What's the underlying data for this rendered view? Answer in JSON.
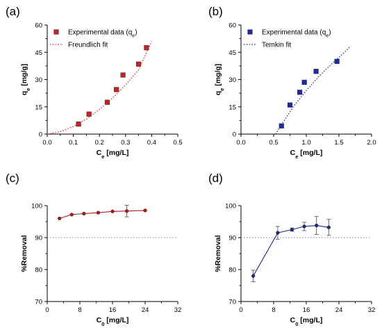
{
  "chart_data": [
    {
      "panel": "(a)",
      "type": "scatter",
      "xlabel": "C",
      "xlabel_sub": "e",
      "xlabel_unit": " [mg/L]",
      "ylabel": "q",
      "ylabel_sub": "e",
      "ylabel_unit": " [mg/g]",
      "xlim": [
        0,
        0.5
      ],
      "ylim": [
        0,
        60
      ],
      "xticks": [
        "0.0",
        "0.1",
        "0.2",
        "0.3",
        "0.4",
        "0.5"
      ],
      "yticks": [
        "0",
        "15",
        "30",
        "45",
        "60"
      ],
      "grid": false,
      "legend_placement": "top-left",
      "series": [
        {
          "name": "Experimental data (q",
          "name_sub": "e",
          "name_tail": ")",
          "kind": "points",
          "marker": "square",
          "color": "#cc1f1f",
          "x": [
            0.12,
            0.16,
            0.23,
            0.265,
            0.29,
            0.35,
            0.38
          ],
          "y": [
            5.5,
            11,
            17.5,
            24.5,
            32.5,
            38.5,
            47.5
          ]
        },
        {
          "name": "Freundlich fit",
          "kind": "dotted-line",
          "color": "#e0201f",
          "x": [
            0,
            0.05,
            0.1,
            0.15,
            0.2,
            0.25,
            0.3,
            0.35,
            0.4
          ],
          "y": [
            0,
            1.3,
            4.2,
            8.3,
            13.5,
            19.8,
            27.1,
            35.3,
            51
          ]
        }
      ]
    },
    {
      "panel": "(b)",
      "type": "scatter",
      "xlabel": "C",
      "xlabel_sub": "e",
      "xlabel_unit": " [mg/L]",
      "ylabel": "q",
      "ylabel_sub": "e",
      "ylabel_unit": " [mg/g]",
      "xlim": [
        0,
        2.0
      ],
      "ylim": [
        0,
        60
      ],
      "xticks": [
        "0.0",
        "0.5",
        "1.0",
        "1.5",
        "2.0"
      ],
      "yticks": [
        "0",
        "15",
        "30",
        "45",
        "60"
      ],
      "grid": false,
      "legend_placement": "top-left",
      "series": [
        {
          "name": "Experimental data (q",
          "name_sub": "e",
          "name_tail": ")",
          "kind": "points",
          "marker": "square",
          "color": "#1a2aa8",
          "x": [
            0.62,
            0.75,
            0.9,
            0.97,
            1.15,
            1.47
          ],
          "y": [
            4.5,
            16,
            23,
            28.5,
            34.5,
            40
          ]
        },
        {
          "name": "Temkin fit",
          "kind": "dotted-line",
          "color": "#1a2aa8",
          "x": [
            0.53,
            0.6,
            0.8,
            1.0,
            1.2,
            1.4,
            1.6,
            1.68
          ],
          "y": [
            0,
            4,
            15,
            24,
            32,
            39,
            45.5,
            48.5
          ]
        }
      ]
    },
    {
      "panel": "(c)",
      "type": "line",
      "xlabel": "C",
      "xlabel_sub": "0",
      "xlabel_unit": " [mg/L]",
      "ylabel": "%Removal",
      "xlim": [
        0,
        32
      ],
      "ylim": [
        70,
        100
      ],
      "xticks": [
        "0",
        "8",
        "16",
        "24",
        "32"
      ],
      "yticks": [
        "70",
        "80",
        "90",
        "100"
      ],
      "grid": false,
      "reference_line_y": 90,
      "series": [
        {
          "kind": "line-markers",
          "marker": "circle",
          "color": "#b3161b",
          "x": [
            3,
            6,
            9,
            12.5,
            16,
            19.5,
            24
          ],
          "y": [
            96,
            97.2,
            97.5,
            97.8,
            98.2,
            98.3,
            98.5
          ],
          "err": [
            0,
            0,
            0,
            0,
            0,
            1.8,
            0
          ]
        }
      ]
    },
    {
      "panel": "(d)",
      "type": "line",
      "xlabel": "C",
      "xlabel_sub": "0",
      "xlabel_unit": " [mg/L]",
      "ylabel": "%Removal",
      "xlim": [
        0,
        32
      ],
      "ylim": [
        70,
        100
      ],
      "xticks": [
        "0",
        "8",
        "16",
        "24",
        "32"
      ],
      "yticks": [
        "70",
        "80",
        "90",
        "100"
      ],
      "grid": false,
      "reference_line_y": 90,
      "series": [
        {
          "kind": "line-markers",
          "marker": "circle",
          "color": "#1a2a8a",
          "x": [
            3,
            9,
            12.5,
            15.5,
            18.5,
            21.5
          ],
          "y": [
            78,
            91.5,
            92.5,
            93.5,
            93.8,
            93.2
          ],
          "err": [
            1.8,
            2,
            0.5,
            1.3,
            2.8,
            2.5
          ]
        }
      ]
    }
  ]
}
